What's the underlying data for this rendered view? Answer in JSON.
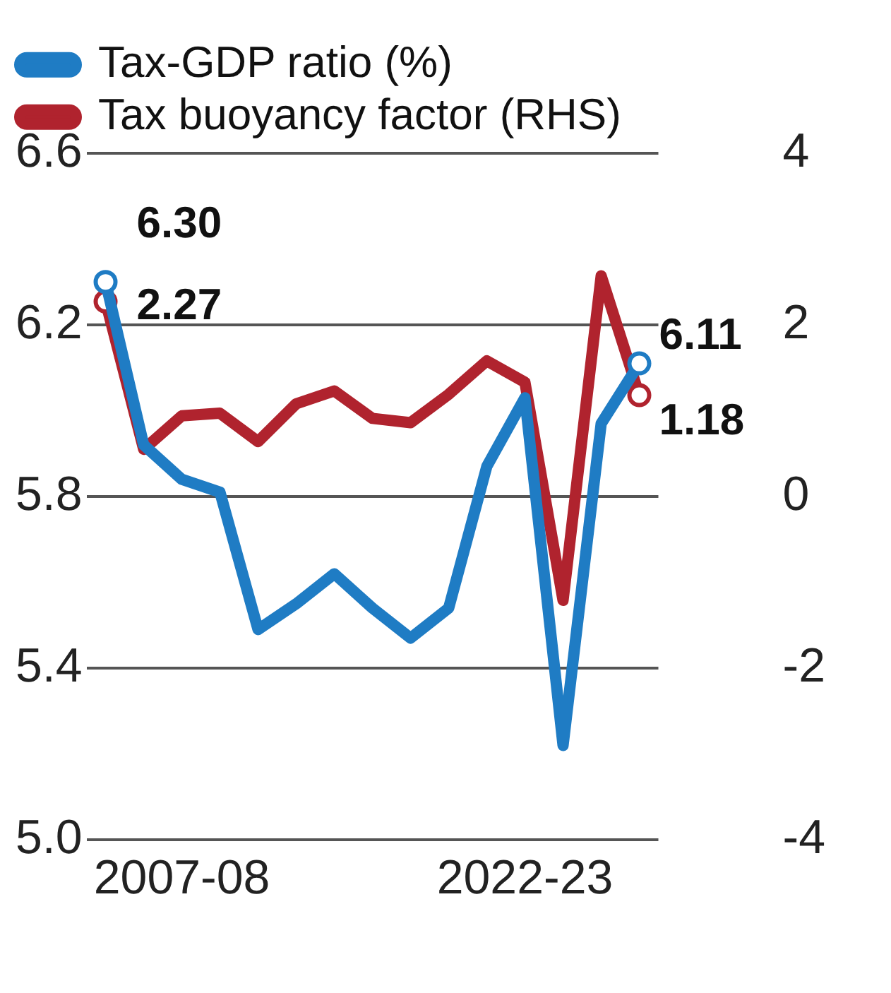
{
  "chart_data": {
    "type": "line",
    "categories": [
      null,
      null,
      "2007-08",
      null,
      null,
      null,
      null,
      null,
      null,
      null,
      null,
      "2022-23",
      null,
      null,
      null
    ],
    "series": [
      {
        "name": "Tax-GDP ratio (%)",
        "color": "#1f7cc4",
        "values": [
          6.3,
          5.92,
          5.84,
          5.81,
          5.49,
          5.55,
          5.62,
          5.54,
          5.47,
          5.54,
          5.87,
          6.03,
          5.22,
          5.97,
          6.11
        ],
        "value_labels": [
          "6.30",
          null,
          null,
          null,
          null,
          null,
          null,
          null,
          null,
          null,
          null,
          null,
          null,
          null,
          "6.11"
        ]
      },
      {
        "name": "Tax buoyancy factor (RHS)",
        "color": "#b0232e",
        "axis": "y2",
        "values": [
          2.27,
          0.55,
          0.94,
          0.97,
          0.64,
          1.08,
          1.23,
          0.91,
          0.86,
          1.19,
          1.58,
          1.33,
          -1.21,
          2.57,
          1.18
        ],
        "value_labels": [
          "2.27",
          null,
          null,
          null,
          null,
          null,
          null,
          null,
          null,
          null,
          null,
          null,
          null,
          null,
          "1.18"
        ]
      }
    ],
    "ylim": [
      5.0,
      6.6
    ],
    "yticks": [
      {
        "value": 5.0,
        "label": "5.0"
      },
      5.4,
      5.8,
      6.2,
      6.6
    ],
    "y2lim": [
      -4,
      4
    ],
    "y2ticks": [
      -4,
      -2,
      0,
      2,
      4
    ],
    "grid": "y",
    "legend": "top left",
    "line_style": "solid"
  }
}
